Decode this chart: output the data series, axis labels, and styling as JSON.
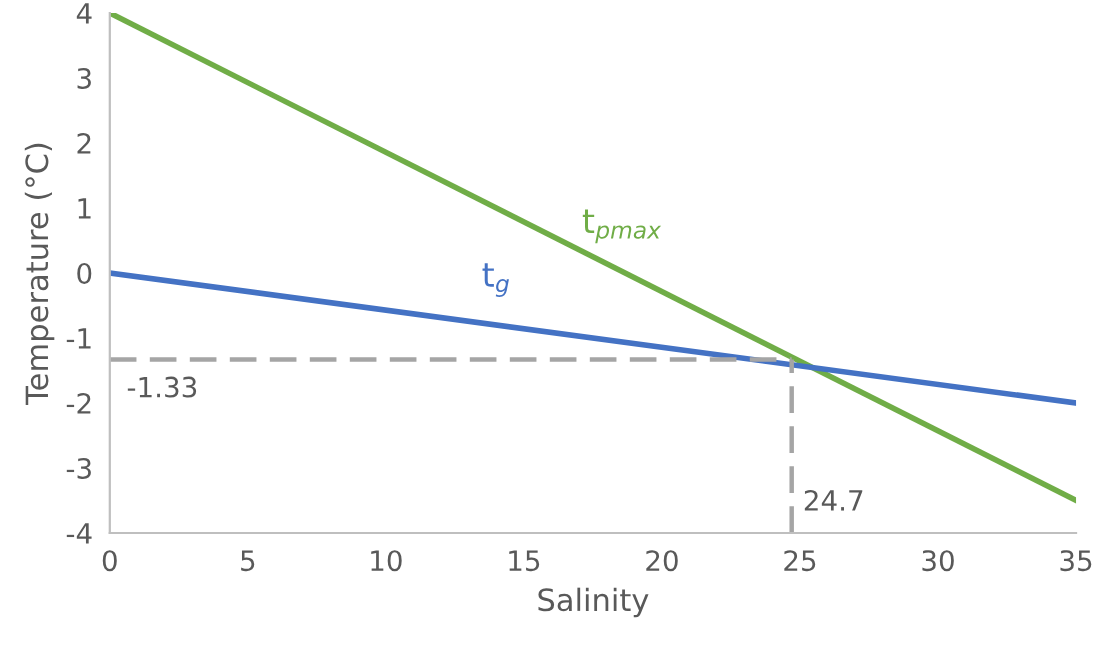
{
  "chart_data": {
    "type": "line",
    "xlabel": "Salinity",
    "ylabel": "Temperature (°C)",
    "xlim": [
      0,
      35
    ],
    "xticks": [
      0,
      5,
      10,
      15,
      20,
      25,
      30,
      35
    ],
    "ylim": [
      -4,
      4
    ],
    "yticks": [
      -4,
      -3,
      -2,
      -1,
      0,
      1,
      2,
      3,
      4
    ],
    "grid": false,
    "legend": false,
    "marker": "none",
    "series": [
      {
        "name": "t$_{pmax}$",
        "color": "#70ad47",
        "x": [
          0,
          35
        ],
        "values": [
          4,
          -3.5
        ]
      },
      {
        "name": "t$_{g}$",
        "color": "#4472c4",
        "x": [
          0,
          35
        ],
        "values": [
          0,
          -2
        ]
      },
      {
        "color": "#a5a5a5",
        "x": [
          0,
          24.7
        ],
        "values": [
          -1.33,
          -1.33
        ],
        "line_style": "dashed"
      },
      {
        "color": "#a5a5a5",
        "x": [
          24.7,
          24.7
        ],
        "values": [
          -4,
          -1.33
        ],
        "line_style": "dashed"
      }
    ],
    "annotations": [
      {
        "text": "-1.33",
        "x": 0,
        "y": -1.33
      },
      {
        "text": "24.7",
        "x": 24.7,
        "y": -4
      }
    ]
  }
}
